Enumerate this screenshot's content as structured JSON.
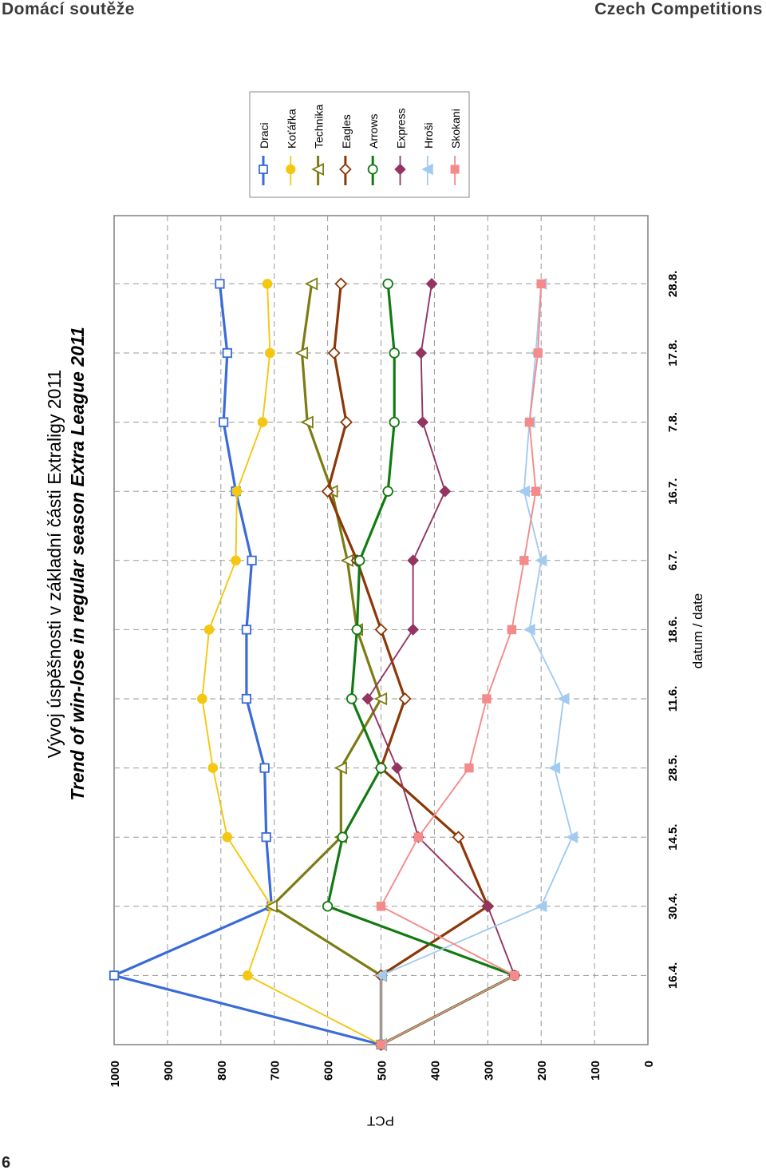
{
  "header": {
    "left": "Domácí soutěže",
    "right": "Czech Competitions"
  },
  "page_number": "6",
  "chart_data": {
    "type": "line",
    "title": "Vývoj úspěšnosti v základní části Extraligy 2011",
    "subtitle": "Trend of win-lose in regular season Extra League 2011",
    "xlabel": "datum / date",
    "ylabel": "PCT",
    "x": [
      "",
      "16.4.",
      "30.4.",
      "14.5.",
      "28.5.",
      "11.6.",
      "18.6.",
      "6.7.",
      "16.7.",
      "7.8.",
      "17.8.",
      "28.8."
    ],
    "ylim": [
      0,
      1000
    ],
    "yticks": [
      "0",
      "100",
      "200",
      "300",
      "400",
      "500",
      "600",
      "700",
      "800",
      "900",
      "1000"
    ],
    "grid": true,
    "legend_position": "top-right",
    "series": [
      {
        "name": "Draci",
        "color": "#3a6bd8",
        "marker": "square-open",
        "values": [
          500,
          1000,
          705,
          715,
          718,
          752,
          752,
          742,
          772,
          795,
          788,
          802
        ]
      },
      {
        "name": "Koťářka",
        "color": "#f4c712",
        "marker": "circle-filled",
        "values": [
          500,
          750,
          705,
          788,
          815,
          835,
          822,
          772,
          770,
          722,
          708,
          713
        ]
      },
      {
        "name": "Technika",
        "color": "#7c7c14",
        "marker": "triangle-open",
        "values": [
          500,
          500,
          705,
          575,
          575,
          500,
          545,
          563,
          592,
          638,
          648,
          630
        ]
      },
      {
        "name": "Eagles",
        "color": "#8b3808",
        "marker": "diamond-open",
        "values": [
          500,
          500,
          300,
          355,
          500,
          455,
          500,
          545,
          600,
          565,
          588,
          575
        ]
      },
      {
        "name": "Arrows",
        "color": "#137a13",
        "marker": "circle-open",
        "values": [
          500,
          250,
          600,
          572,
          500,
          555,
          545,
          540,
          487,
          475,
          475,
          487
        ]
      },
      {
        "name": "Express",
        "color": "#933462",
        "marker": "diamond-filled",
        "values": [
          500,
          250,
          300,
          430,
          470,
          525,
          440,
          440,
          380,
          422,
          425,
          405
        ]
      },
      {
        "name": "Hroši",
        "color": "#a3cbf0",
        "marker": "triangle-filled",
        "values": [
          500,
          500,
          200,
          142,
          175,
          158,
          222,
          200,
          232,
          222,
          210,
          200
        ]
      },
      {
        "name": "Skokani",
        "color": "#f48a8a",
        "marker": "square-filled",
        "values": [
          500,
          250,
          500,
          430,
          335,
          302,
          255,
          232,
          210,
          222,
          206,
          200
        ]
      }
    ]
  }
}
